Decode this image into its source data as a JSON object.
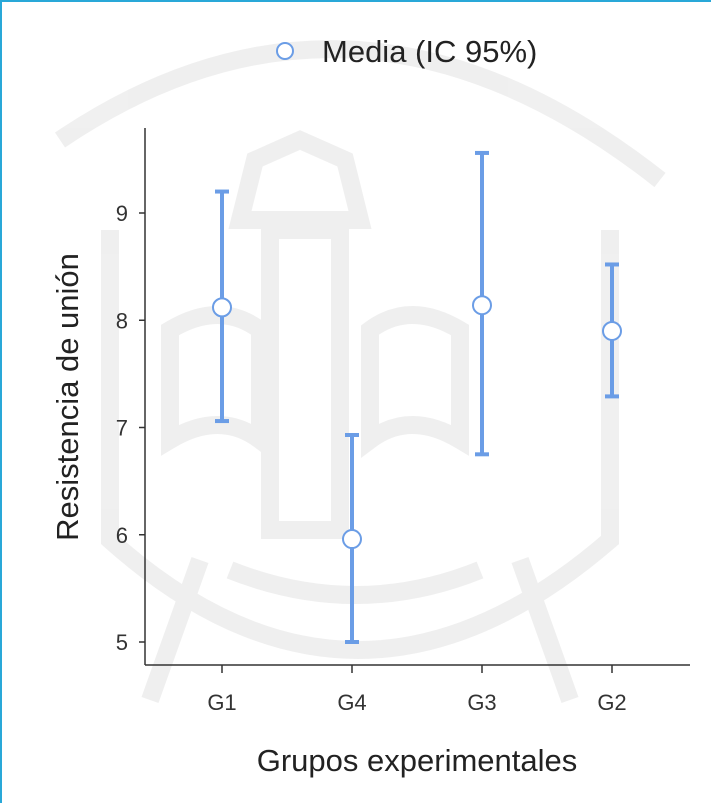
{
  "chart_data": {
    "type": "errorbar",
    "categories": [
      "G1",
      "G4",
      "G3",
      "G2"
    ],
    "series": [
      {
        "name": "Media (IC 95%)",
        "values": [
          8.12,
          5.96,
          8.14,
          7.9
        ],
        "ci_low": [
          7.06,
          5.0,
          6.75,
          7.29
        ],
        "ci_high": [
          9.2,
          6.93,
          9.56,
          8.52
        ]
      }
    ],
    "xlabel": "Grupos experimentales",
    "ylabel": "Resistencia de unión",
    "ylim": [
      4.85,
      9.7
    ],
    "yticks": [
      5,
      6,
      7,
      8,
      9
    ],
    "grid": false,
    "legend": "top-right",
    "colors": {
      "errorbar": "#6b9de6",
      "marker_fill": "#ffffff",
      "marker_edge": "#6b9de6",
      "frame": "#29a8d8"
    }
  }
}
